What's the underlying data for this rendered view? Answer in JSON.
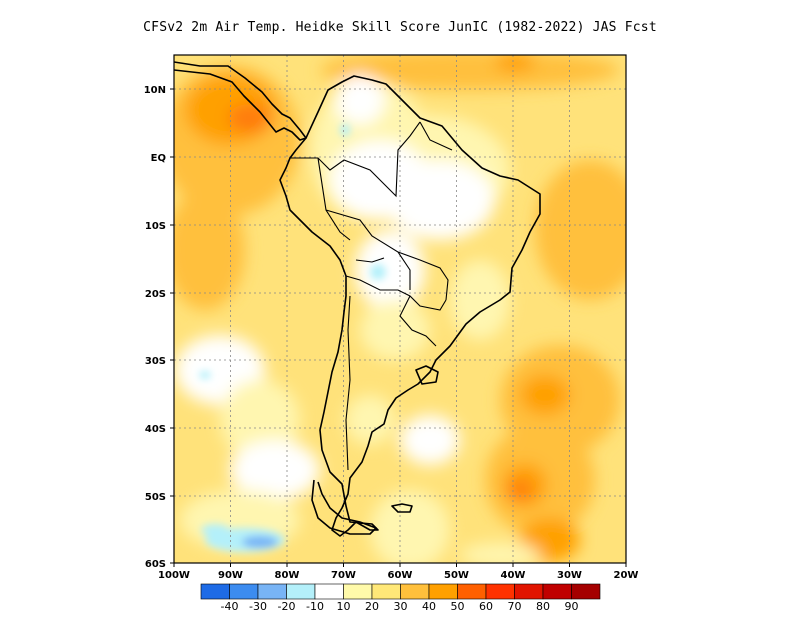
{
  "title": "CFSv2  2m Air Temp. Heidke Skill Score JunIC (1982-2022) JAS Fcst",
  "map": {
    "lat_labels": [
      "10N",
      "EQ",
      "10S",
      "20S",
      "30S",
      "40S",
      "50S",
      "60S"
    ],
    "lon_labels": [
      "100W",
      "90W",
      "80W",
      "70W",
      "60W",
      "50W",
      "40W",
      "30W",
      "20W"
    ],
    "lon_range": [
      -100,
      -20
    ],
    "lat_range": [
      -60,
      15
    ],
    "grid": true
  },
  "colorbar": {
    "colors": [
      "#1e6be6",
      "#3c8cf0",
      "#78b4f5",
      "#b4f0fa",
      "#ffffff",
      "#fffaaa",
      "#ffe878",
      "#ffc03c",
      "#ffa000",
      "#ff6000",
      "#ff3200",
      "#e11400",
      "#c00000",
      "#a50000"
    ],
    "labels": [
      "-40",
      "-30",
      "-20",
      "-10",
      "10",
      "20",
      "30",
      "40",
      "50",
      "60",
      "70",
      "80",
      "90"
    ]
  }
}
